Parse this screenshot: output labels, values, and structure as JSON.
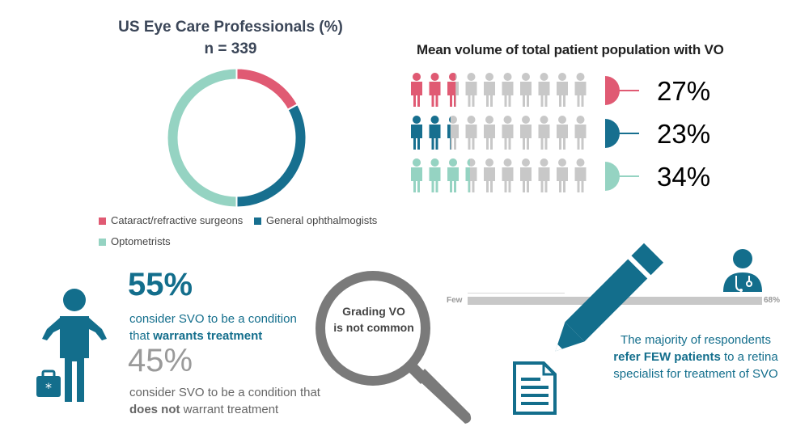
{
  "chart_data": [
    {
      "type": "pie",
      "title": "US Eye Care Professionals (%)",
      "subtitle": "n = 339",
      "series": [
        {
          "name": "Cataract/refractive surgeons",
          "value": 17,
          "color": "#e05a73"
        },
        {
          "name": "General ophthalmogists",
          "value": 33,
          "color": "#176f8f"
        },
        {
          "name": "Optometrists",
          "value": 50,
          "color": "#95d3c2"
        }
      ]
    },
    {
      "type": "bar",
      "title": "Mean volume of total patient population with VO",
      "categories": [
        "Cataract/refractive surgeons",
        "General ophthalmogists",
        "Optometrists"
      ],
      "values": [
        27,
        23,
        34
      ],
      "labels": [
        "27%",
        "23%",
        "34%"
      ],
      "colors": [
        "#e05a73",
        "#176f8f",
        "#95d3c2"
      ],
      "icons_per_row": 10
    }
  ],
  "svo": {
    "pct_treat": "55%",
    "treat_text_1": "consider SVO to be a condition",
    "treat_text_2": "that ",
    "treat_bold": "warrants treatment",
    "pct_no_treat": "45%",
    "no_treat_text_1": "consider SVO to be a condition that",
    "no_treat_bold": "does not",
    "no_treat_text_2": " warrant treatment"
  },
  "grading": {
    "line1": "Grading VO",
    "line2": "is not common"
  },
  "referral": {
    "few_label": "Few",
    "pct_label": "68%",
    "value": 68,
    "text_1": "The majority of respondents",
    "text_bold": "refer FEW patients",
    "text_2": " to a retina",
    "text_3": "specialist for treatment of SVO"
  },
  "colors": {
    "teal_dark": "#136e8c",
    "grey": "#c8c8c8"
  },
  "icons": [
    "person-icon",
    "medical-bag-icon",
    "magnifier-icon",
    "pencil-icon",
    "document-icon",
    "doctor-icon"
  ]
}
